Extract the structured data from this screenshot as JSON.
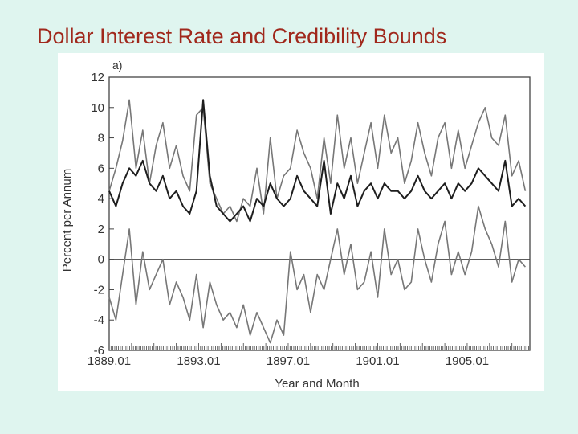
{
  "slide": {
    "title": "Dollar Interest Rate and Credibility Bounds"
  },
  "colors": {
    "background": "#dff5ef",
    "title": "#a0281c",
    "upper_series": "#777777",
    "middle_series": "#1e1e1e",
    "lower_series": "#777777",
    "axis": "#444444"
  },
  "chart_data": {
    "type": "line",
    "panel_label": "a)",
    "title": "",
    "xlabel": "Year and Month",
    "ylabel": "Percent per Annum",
    "ylim": [
      -6,
      12
    ],
    "xlim": [
      1889.0,
      1907.8
    ],
    "yticks": [
      12,
      10,
      8,
      6,
      4,
      2,
      0,
      -2,
      -4,
      -6
    ],
    "xtick_labels": [
      "1889.01",
      "1893.01",
      "1897.01",
      "1901.01",
      "1905.01"
    ],
    "xtick_values": [
      1889.0,
      1893.0,
      1897.0,
      1901.0,
      1905.0
    ],
    "zero_line": true,
    "grid": false,
    "series": [
      {
        "x": [
          1889.0,
          1889.3,
          1889.6,
          1889.9,
          1890.2,
          1890.5,
          1890.8,
          1891.1,
          1891.4,
          1891.7,
          1892.0,
          1892.3,
          1892.6,
          1892.9,
          1893.2,
          1893.5,
          1893.8,
          1894.1,
          1894.4,
          1894.7,
          1895.0,
          1895.3,
          1895.6,
          1895.9,
          1896.2,
          1896.5,
          1896.8,
          1897.1,
          1897.4,
          1897.7,
          1898.0,
          1898.3,
          1898.6,
          1898.9,
          1899.2,
          1899.5,
          1899.8,
          1900.1,
          1900.4,
          1900.7,
          1901.0,
          1901.3,
          1901.6,
          1901.9,
          1902.2,
          1902.5,
          1902.8,
          1903.1,
          1903.4,
          1903.7,
          1904.0,
          1904.3,
          1904.6,
          1904.9,
          1905.2,
          1905.5,
          1905.8,
          1906.1,
          1906.4,
          1906.7,
          1907.0,
          1907.3,
          1907.6
        ],
        "values": [
          4.5,
          6.0,
          7.8,
          10.5,
          6.0,
          8.5,
          5.0,
          7.5,
          9.0,
          6.0,
          7.5,
          5.5,
          4.5,
          9.5,
          10.0,
          5.0,
          4.0,
          3.0,
          3.5,
          2.5,
          4.0,
          3.5,
          6.0,
          3.0,
          8.0,
          4.0,
          5.5,
          6.0,
          8.5,
          7.0,
          6.0,
          4.0,
          8.0,
          5.0,
          9.5,
          6.0,
          8.0,
          5.0,
          7.0,
          9.0,
          6.0,
          9.5,
          7.0,
          8.0,
          5.0,
          6.5,
          9.0,
          7.0,
          5.5,
          8.0,
          9.0,
          6.0,
          8.5,
          6.0,
          7.5,
          9.0,
          10.0,
          8.0,
          7.5,
          9.5,
          5.5,
          6.5,
          4.5
        ]
      },
      {
        "x": [
          1889.0,
          1889.3,
          1889.6,
          1889.9,
          1890.2,
          1890.5,
          1890.8,
          1891.1,
          1891.4,
          1891.7,
          1892.0,
          1892.3,
          1892.6,
          1892.9,
          1893.2,
          1893.5,
          1893.8,
          1894.1,
          1894.4,
          1894.7,
          1895.0,
          1895.3,
          1895.6,
          1895.9,
          1896.2,
          1896.5,
          1896.8,
          1897.1,
          1897.4,
          1897.7,
          1898.0,
          1898.3,
          1898.6,
          1898.9,
          1899.2,
          1899.5,
          1899.8,
          1900.1,
          1900.4,
          1900.7,
          1901.0,
          1901.3,
          1901.6,
          1901.9,
          1902.2,
          1902.5,
          1902.8,
          1903.1,
          1903.4,
          1903.7,
          1904.0,
          1904.3,
          1904.6,
          1904.9,
          1905.2,
          1905.5,
          1905.8,
          1906.1,
          1906.4,
          1906.7,
          1907.0,
          1907.3,
          1907.6
        ],
        "values": [
          4.5,
          3.5,
          5.0,
          6.0,
          5.5,
          6.5,
          5.0,
          4.5,
          5.5,
          4.0,
          4.5,
          3.5,
          3.0,
          4.5,
          10.5,
          5.5,
          3.5,
          3.0,
          2.5,
          3.0,
          3.5,
          2.5,
          4.0,
          3.5,
          5.0,
          4.0,
          3.5,
          4.0,
          5.5,
          4.5,
          4.0,
          3.5,
          6.5,
          3.0,
          5.0,
          4.0,
          5.5,
          3.5,
          4.5,
          5.0,
          4.0,
          5.0,
          4.5,
          4.5,
          4.0,
          4.5,
          5.5,
          4.5,
          4.0,
          4.5,
          5.0,
          4.0,
          5.0,
          4.5,
          5.0,
          6.0,
          5.5,
          5.0,
          4.5,
          6.5,
          3.5,
          4.0,
          3.5
        ]
      },
      {
        "x": [
          1889.0,
          1889.3,
          1889.6,
          1889.9,
          1890.2,
          1890.5,
          1890.8,
          1891.1,
          1891.4,
          1891.7,
          1892.0,
          1892.3,
          1892.6,
          1892.9,
          1893.2,
          1893.5,
          1893.8,
          1894.1,
          1894.4,
          1894.7,
          1895.0,
          1895.3,
          1895.6,
          1895.9,
          1896.2,
          1896.5,
          1896.8,
          1897.1,
          1897.4,
          1897.7,
          1898.0,
          1898.3,
          1898.6,
          1898.9,
          1899.2,
          1899.5,
          1899.8,
          1900.1,
          1900.4,
          1900.7,
          1901.0,
          1901.3,
          1901.6,
          1901.9,
          1902.2,
          1902.5,
          1902.8,
          1903.1,
          1903.4,
          1903.7,
          1904.0,
          1904.3,
          1904.6,
          1904.9,
          1905.2,
          1905.5,
          1905.8,
          1906.1,
          1906.4,
          1906.7,
          1907.0,
          1907.3,
          1907.6
        ],
        "values": [
          -2.5,
          -4.0,
          -1.0,
          2.0,
          -3.0,
          0.5,
          -2.0,
          -1.0,
          0.0,
          -3.0,
          -1.5,
          -2.5,
          -4.0,
          -1.0,
          -4.5,
          -1.5,
          -3.0,
          -4.0,
          -3.5,
          -4.5,
          -3.0,
          -5.0,
          -3.5,
          -4.5,
          -5.5,
          -4.0,
          -5.0,
          0.5,
          -2.0,
          -1.0,
          -3.5,
          -1.0,
          -2.0,
          0.0,
          2.0,
          -1.0,
          1.0,
          -2.0,
          -1.5,
          0.5,
          -2.5,
          2.0,
          -1.0,
          0.0,
          -2.0,
          -1.5,
          2.0,
          0.0,
          -1.5,
          1.0,
          2.5,
          -1.0,
          0.5,
          -1.0,
          0.5,
          3.5,
          2.0,
          1.0,
          -0.5,
          2.5,
          -1.5,
          0.0,
          -0.5
        ]
      }
    ]
  }
}
